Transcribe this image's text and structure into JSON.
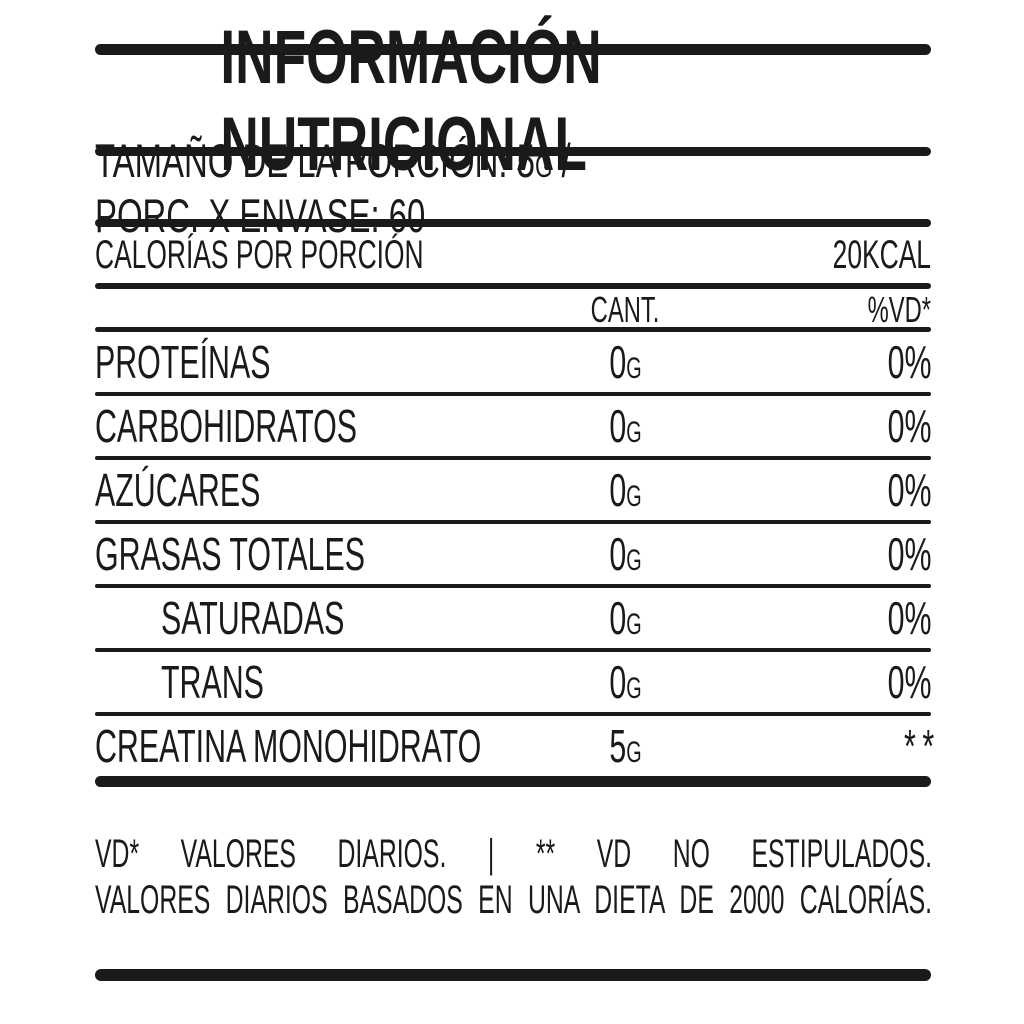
{
  "colors": {
    "ink": "#1a1a1a",
    "background": "#ffffff"
  },
  "title": "INFORMACIÓN NUTRICIONAL",
  "serving": {
    "prefix": "TAMAÑO DE LA PORCIÓN: 5",
    "unit": "G",
    "suffix": " / PORC. X ENVASE: 60"
  },
  "calories": {
    "label": "CALORÍAS POR PORCIÓN",
    "value": "20KCAL"
  },
  "table": {
    "columns": {
      "amount": "CANT.",
      "daily_value": "%VD*"
    },
    "rows": [
      {
        "label": "PROTEÍNAS",
        "amount": "0",
        "unit": "G",
        "daily_value": "0%",
        "indent": false
      },
      {
        "label": "CARBOHIDRATOS",
        "amount": "0",
        "unit": "G",
        "daily_value": "0%",
        "indent": false
      },
      {
        "label": "AZÚCARES",
        "amount": "0",
        "unit": "G",
        "daily_value": "0%",
        "indent": false
      },
      {
        "label": "GRASAS TOTALES",
        "amount": "0",
        "unit": "G",
        "daily_value": "0%",
        "indent": false
      },
      {
        "label": "SATURADAS",
        "amount": "0",
        "unit": "G",
        "daily_value": "0%",
        "indent": true
      },
      {
        "label": "TRANS",
        "amount": "0",
        "unit": "G",
        "daily_value": "0%",
        "indent": true
      },
      {
        "label": "CREATINA MONOHIDRATO",
        "amount": "5",
        "unit": "G",
        "daily_value": "**",
        "indent": false
      }
    ]
  },
  "footnotes": {
    "line1": "VD* VALORES DIARIOS. | ** VD NO ESTIPULADOS.",
    "line2": "VALORES DIARIOS BASADOS EN UNA DIETA DE 2000 CALORÍAS."
  }
}
